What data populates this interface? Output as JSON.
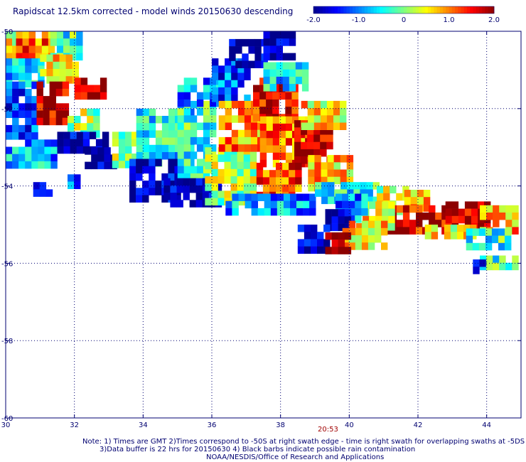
{
  "title": "Rapidscat 12.5km corrected - model winds 20150630 descending",
  "time_label": "20:53",
  "notes": [
    "Note: 1) Times are GMT 2)Times correspond to -50S at right swath edge - time is right swath for overlapping swaths at -5DS",
    "3)Data buffer is 22 hrs for 20150630 4) Black barbs indicate possible rain contamination",
    "NOAA/NESDIS/Office of Research and Applications"
  ],
  "colors": {
    "axis": "#000070",
    "grid": "#000070",
    "scale": [
      "#00008c",
      "#0000ff",
      "#0080ff",
      "#00ffff",
      "#80ff80",
      "#ffff00",
      "#ff8000",
      "#ff0000",
      "#8c0000"
    ]
  },
  "chart_data": {
    "type": "heatmap",
    "title": "Rapidscat 12.5km corrected - model winds 20150630 descending",
    "colorbar": {
      "range": [
        -2.0,
        2.0
      ],
      "tick_labels": [
        "-2.0",
        "-1.0",
        "0",
        "1.0",
        "2.0"
      ],
      "tick_values": [
        -2.0,
        -1.0,
        0,
        1.0,
        2.0
      ]
    },
    "xlim": [
      30,
      45
    ],
    "ylim": [
      -60,
      -50
    ],
    "x_ticks": [
      "30",
      "32",
      "34",
      "36",
      "38",
      "40",
      "42",
      "44"
    ],
    "x_tick_values": [
      30,
      32,
      34,
      36,
      38,
      40,
      42,
      44
    ],
    "y_ticks": [
      "-50",
      "-52",
      "-54",
      "-56",
      "-58",
      "-60"
    ],
    "y_tick_values": [
      -50,
      -52,
      -54,
      -56,
      -58,
      -60
    ],
    "grid": true,
    "cell_size_deg": 0.1875,
    "regions": [
      {
        "lon": [
          30.0,
          30.3
        ],
        "lat": [
          -50.0,
          -51.1
        ],
        "value": 0.3
      },
      {
        "lon": [
          30.3,
          31.3
        ],
        "lat": [
          -50.0,
          -50.7
        ],
        "value": 1.1
      },
      {
        "lon": [
          31.3,
          32.2
        ],
        "lat": [
          -50.0,
          -50.6
        ],
        "value": -0.3
      },
      {
        "lon": [
          30.0,
          31.0
        ],
        "lat": [
          -50.7,
          -51.3
        ],
        "value": -0.6
      },
      {
        "lon": [
          31.0,
          32.0
        ],
        "lat": [
          -50.6,
          -51.3
        ],
        "value": 0.6
      },
      {
        "lon": [
          32.0,
          32.8
        ],
        "lat": [
          -51.2,
          -51.6
        ],
        "value": 1.6
      },
      {
        "lon": [
          30.0,
          30.9
        ],
        "lat": [
          -51.3,
          -52.8
        ],
        "value": -1.3
      },
      {
        "lon": [
          30.9,
          31.8
        ],
        "lat": [
          -51.3,
          -52.4
        ],
        "value": 1.8
      },
      {
        "lon": [
          31.8,
          32.6
        ],
        "lat": [
          -52.0,
          -52.6
        ],
        "value": 0.2
      },
      {
        "lon": [
          30.0,
          31.5
        ],
        "lat": [
          -52.8,
          -53.4
        ],
        "value": -0.8
      },
      {
        "lon": [
          31.5,
          33.0
        ],
        "lat": [
          -52.6,
          -53.0
        ],
        "value": -1.8
      },
      {
        "lon": [
          32.3,
          33.2
        ],
        "lat": [
          -53.0,
          -53.4
        ],
        "value": -1.9
      },
      {
        "lon": [
          30.8,
          31.2
        ],
        "lat": [
          -53.9,
          -54.1
        ],
        "value": -1.8
      },
      {
        "lon": [
          31.8,
          32.0
        ],
        "lat": [
          -53.7,
          -53.9
        ],
        "value": -1.2
      },
      {
        "lon": [
          33.1,
          34.0
        ],
        "lat": [
          -52.6,
          -53.4
        ],
        "value": 0.0
      },
      {
        "lon": [
          33.8,
          35.4
        ],
        "lat": [
          -52.0,
          -53.4
        ],
        "value": -0.5
      },
      {
        "lon": [
          33.6,
          35.0
        ],
        "lat": [
          -53.3,
          -54.4
        ],
        "value": -1.7
      },
      {
        "lon": [
          35.0,
          36.0
        ],
        "lat": [
          -51.8,
          -53.8
        ],
        "value": -0.3
      },
      {
        "lon": [
          34.6,
          36.2
        ],
        "lat": [
          -53.8,
          -54.5
        ],
        "value": -1.9
      },
      {
        "lon": [
          35.8,
          37.3
        ],
        "lat": [
          -53.0,
          -54.4
        ],
        "value": 0.2
      },
      {
        "lon": [
          35.0,
          36.3
        ],
        "lat": [
          -51.2,
          -51.8
        ],
        "value": -0.9
      },
      {
        "lon": [
          36.0,
          37.0
        ],
        "lat": [
          -50.7,
          -51.8
        ],
        "value": -1.2
      },
      {
        "lon": [
          36.5,
          37.6
        ],
        "lat": [
          -50.2,
          -50.8
        ],
        "value": -1.9
      },
      {
        "lon": [
          37.5,
          38.3
        ],
        "lat": [
          -50.0,
          -50.6
        ],
        "value": -2.0
      },
      {
        "lon": [
          36.2,
          37.4
        ],
        "lat": [
          -51.8,
          -53.0
        ],
        "value": 0.9
      },
      {
        "lon": [
          37.2,
          38.5
        ],
        "lat": [
          -51.2,
          -52.2
        ],
        "value": 1.6
      },
      {
        "lon": [
          37.4,
          38.8
        ],
        "lat": [
          -52.2,
          -53.4
        ],
        "value": 1.1
      },
      {
        "lon": [
          38.4,
          39.5
        ],
        "lat": [
          -52.3,
          -53.4
        ],
        "value": 1.9
      },
      {
        "lon": [
          38.8,
          40.0
        ],
        "lat": [
          -53.2,
          -54.0
        ],
        "value": 0.7
      },
      {
        "lon": [
          37.3,
          38.5
        ],
        "lat": [
          -53.4,
          -54.2
        ],
        "value": 1.3
      },
      {
        "lon": [
          37.5,
          38.7
        ],
        "lat": [
          -50.8,
          -51.4
        ],
        "value": -0.6
      },
      {
        "lon": [
          36.4,
          39.0
        ],
        "lat": [
          -54.2,
          -54.6
        ],
        "value": -0.9
      },
      {
        "lon": [
          38.6,
          39.8
        ],
        "lat": [
          -51.8,
          -52.4
        ],
        "value": 0.6
      },
      {
        "lon": [
          39.0,
          40.8
        ],
        "lat": [
          -53.9,
          -54.4
        ],
        "value": -0.4
      },
      {
        "lon": [
          40.8,
          41.6
        ],
        "lat": [
          -54.0,
          -54.7
        ],
        "value": 0.3
      },
      {
        "lon": [
          41.6,
          42.3
        ],
        "lat": [
          -54.1,
          -54.6
        ],
        "value": 0.9
      },
      {
        "lon": [
          41.0,
          42.8
        ],
        "lat": [
          -54.5,
          -55.2
        ],
        "value": 1.7
      },
      {
        "lon": [
          42.8,
          44.0
        ],
        "lat": [
          -54.4,
          -55.0
        ],
        "value": 1.9
      },
      {
        "lon": [
          43.8,
          44.8
        ],
        "lat": [
          -54.5,
          -55.2
        ],
        "value": 0.8
      },
      {
        "lon": [
          42.2,
          43.6
        ],
        "lat": [
          -55.0,
          -55.3
        ],
        "value": 0.4
      },
      {
        "lon": [
          43.4,
          44.7
        ],
        "lat": [
          -55.1,
          -55.5
        ],
        "value": -0.3
      },
      {
        "lon": [
          40.2,
          41.2
        ],
        "lat": [
          -54.4,
          -55.0
        ],
        "value": 0.5
      },
      {
        "lon": [
          39.6,
          40.4
        ],
        "lat": [
          -54.2,
          -54.9
        ],
        "value": -1.0
      },
      {
        "lon": [
          39.3,
          40.0
        ],
        "lat": [
          -54.6,
          -55.1
        ],
        "value": -1.9
      },
      {
        "lon": [
          39.8,
          41.0
        ],
        "lat": [
          -54.9,
          -55.6
        ],
        "value": 0.6
      },
      {
        "lon": [
          38.5,
          39.3
        ],
        "lat": [
          -55.0,
          -55.6
        ],
        "value": -1.8
      },
      {
        "lon": [
          39.3,
          40.0
        ],
        "lat": [
          -55.2,
          -55.7
        ],
        "value": 1.9
      },
      {
        "lon": [
          43.8,
          44.8
        ],
        "lat": [
          -55.8,
          -56.0
        ],
        "value": -0.3
      },
      {
        "lon": [
          43.6,
          43.8
        ],
        "lat": [
          -55.9,
          -56.1
        ],
        "value": -1.9
      }
    ]
  }
}
